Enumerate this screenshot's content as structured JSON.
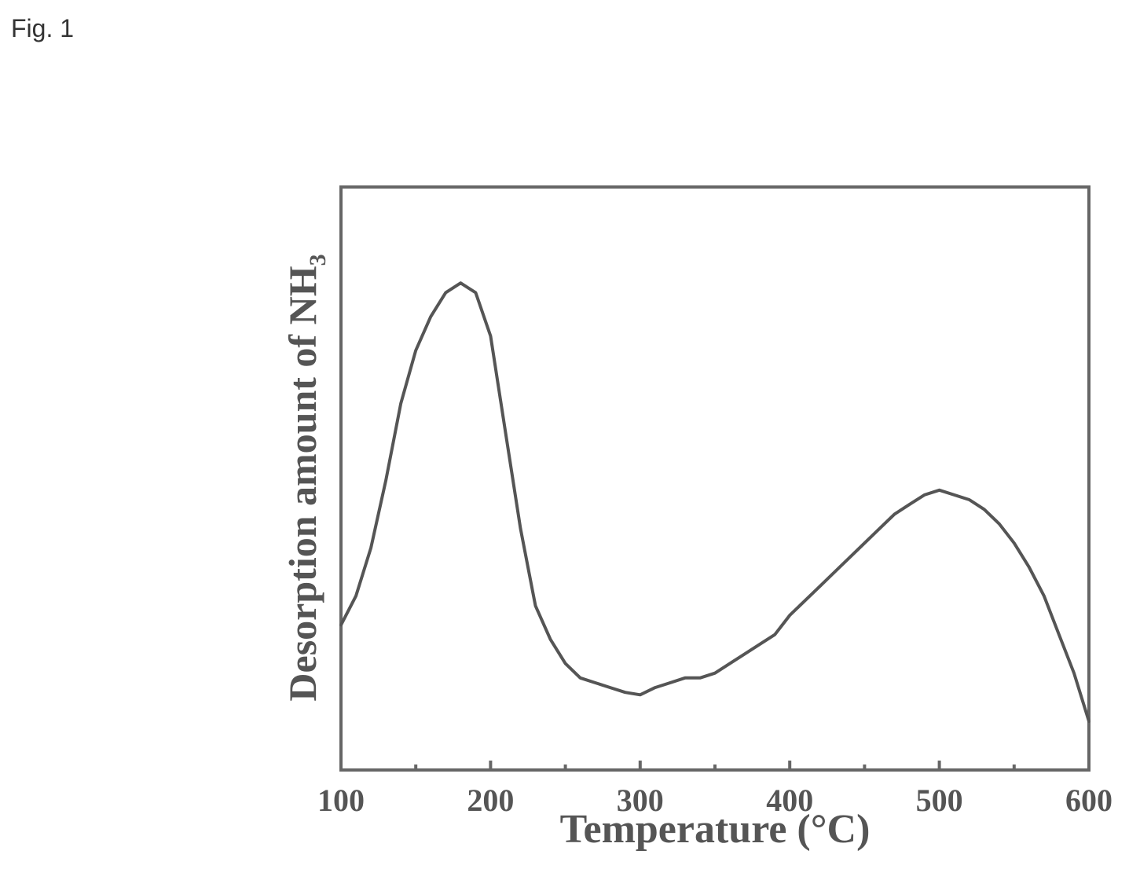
{
  "figure": {
    "label": "Fig. 1"
  },
  "chart_data": {
    "type": "line",
    "title": "",
    "xlabel": "Temperature (°C)",
    "ylabel": "Desorption amount of NH",
    "ylabel_subscript": "3",
    "xlim": [
      100,
      600
    ],
    "ylim": [
      0,
      1
    ],
    "xticks": [
      100,
      200,
      300,
      400,
      500,
      600
    ],
    "xtick_labels": [
      "100",
      "200",
      "300",
      "400",
      "500",
      "600"
    ],
    "minor_xticks": [
      150,
      250,
      350,
      450,
      550
    ],
    "yticks_shown": false,
    "grid": false,
    "line_color": "#555555",
    "series": [
      {
        "x": [
          100,
          110,
          120,
          130,
          140,
          150,
          160,
          170,
          175,
          180,
          185,
          190,
          200,
          210,
          220,
          230,
          240,
          250,
          260,
          270,
          280,
          290,
          300,
          310,
          320,
          330,
          340,
          350,
          360,
          370,
          380,
          390,
          400,
          410,
          420,
          430,
          440,
          450,
          460,
          470,
          480,
          490,
          500,
          510,
          520,
          530,
          540,
          550,
          560,
          570,
          580,
          590,
          600
        ],
        "y": [
          0.2,
          0.26,
          0.36,
          0.5,
          0.66,
          0.77,
          0.84,
          0.89,
          0.9,
          0.91,
          0.9,
          0.89,
          0.8,
          0.6,
          0.4,
          0.24,
          0.17,
          0.12,
          0.09,
          0.08,
          0.07,
          0.06,
          0.055,
          0.07,
          0.08,
          0.09,
          0.09,
          0.1,
          0.12,
          0.14,
          0.16,
          0.18,
          0.22,
          0.25,
          0.28,
          0.31,
          0.34,
          0.37,
          0.4,
          0.43,
          0.45,
          0.47,
          0.48,
          0.47,
          0.46,
          0.44,
          0.41,
          0.37,
          0.32,
          0.26,
          0.18,
          0.1,
          0.0
        ]
      }
    ]
  }
}
